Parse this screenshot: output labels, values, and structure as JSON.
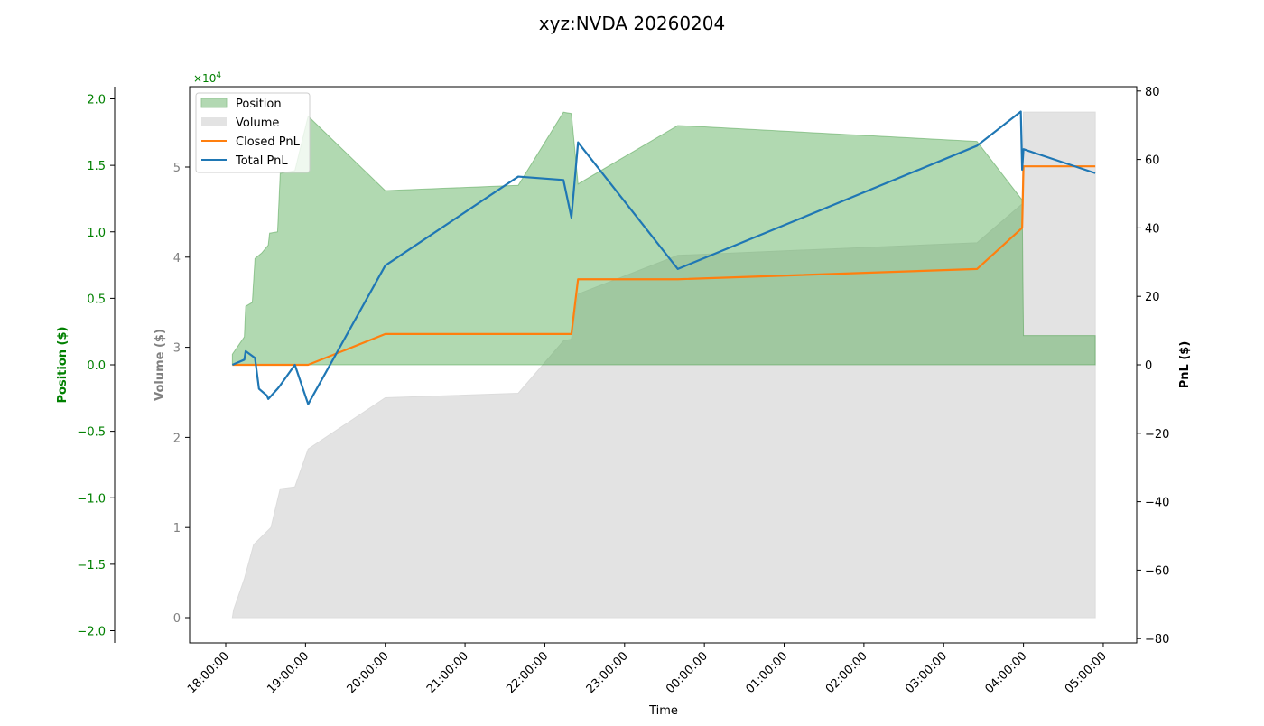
{
  "chart_data": {
    "type": "line",
    "title": "xyz:NVDA 20260204",
    "xlabel": "Time",
    "x_ticks": [
      "18:00:00",
      "19:00:00",
      "20:00:00",
      "21:00:00",
      "22:00:00",
      "23:00:00",
      "00:00:00",
      "01:00:00",
      "02:00:00",
      "03:00:00",
      "04:00:00",
      "05:00:00"
    ],
    "axes": {
      "position": {
        "label": "Position ($)",
        "color": "#008000",
        "multiplier": "×10^4",
        "ylim": [
          -2.05,
          2.05
        ],
        "ticks": [
          "2.0",
          "1.5",
          "1.0",
          "0.5",
          "0.0",
          "−0.5",
          "−1.0",
          "−1.5",
          "−2.0"
        ]
      },
      "volume": {
        "label": "Volume ($)",
        "color": "#808080",
        "multiplier": "×10^4",
        "ylim": [
          -0.28,
          5.9
        ],
        "ticks": [
          "0",
          "1",
          "2",
          "3",
          "4",
          "5"
        ]
      },
      "pnl": {
        "label": "PnL ($)",
        "color": "#000000",
        "ylim": [
          -80,
          80
        ],
        "ticks": [
          "80",
          "60",
          "40",
          "20",
          "0",
          "−20",
          "−40",
          "−60",
          "−80"
        ]
      }
    },
    "legend": {
      "position": "upper left",
      "entries": [
        {
          "label": "Position",
          "kind": "area",
          "color": "#b2d8b2"
        },
        {
          "label": "Volume",
          "kind": "area",
          "color": "#e3e3e3"
        },
        {
          "label": "Closed PnL",
          "kind": "line",
          "color": "#ff7f0e"
        },
        {
          "label": "Total PnL",
          "kind": "line",
          "color": "#1f77b4"
        }
      ]
    },
    "series": [
      {
        "name": "Position",
        "axis": "position",
        "unit": "x1e4 $",
        "x": [
          "18:05",
          "18:14",
          "18:15",
          "18:20",
          "18:22",
          "18:27",
          "18:32",
          "18:33",
          "18:39",
          "18:41",
          "18:52",
          "19:02",
          "19:60",
          "21:40",
          "22:14",
          "22:20",
          "22:25",
          "23:40",
          "03:25",
          "03:59",
          "04:00",
          "04:54"
        ],
        "values": [
          0.08,
          0.21,
          0.44,
          0.47,
          0.8,
          0.84,
          0.9,
          0.99,
          1.0,
          1.44,
          1.46,
          1.87,
          1.31,
          1.35,
          1.9,
          1.89,
          1.36,
          1.8,
          1.68,
          1.24,
          0.22,
          0.22
        ]
      },
      {
        "name": "Volume",
        "axis": "volume",
        "unit": "x1e4 $",
        "x": [
          "18:05",
          "18:06",
          "18:14",
          "18:21",
          "18:34",
          "18:41",
          "18:52",
          "19:02",
          "19:60",
          "21:40",
          "22:14",
          "22:20",
          "22:25",
          "23:40",
          "03:25",
          "03:59",
          "04:00",
          "04:54"
        ],
        "values": [
          0.0,
          0.09,
          0.43,
          0.81,
          1.0,
          1.43,
          1.45,
          1.87,
          2.44,
          2.49,
          3.07,
          3.09,
          3.59,
          4.02,
          4.16,
          4.59,
          5.61,
          5.61
        ]
      },
      {
        "name": "Closed PnL",
        "axis": "pnl",
        "x": [
          "18:05",
          "19:02",
          "19:60",
          "22:20",
          "22:25",
          "23:40",
          "03:25",
          "03:59",
          "04:00",
          "04:54"
        ],
        "values": [
          0,
          0,
          9,
          9,
          25,
          25,
          28,
          40,
          58,
          58
        ]
      },
      {
        "name": "Total PnL",
        "axis": "pnl",
        "x": [
          "18:05",
          "18:14",
          "18:15",
          "18:22",
          "18:25",
          "18:31",
          "18:32",
          "18:39",
          "18:41",
          "18:52",
          "19:02",
          "19:60",
          "21:40",
          "22:14",
          "22:20",
          "22:25",
          "23:40",
          "03:25",
          "03:58",
          "03:59",
          "04:00",
          "04:54"
        ],
        "values": [
          0,
          1.5,
          4,
          2,
          -7,
          -9,
          -10,
          -7,
          -6,
          0,
          -11.5,
          29,
          55,
          54,
          43,
          65,
          28,
          64,
          74,
          57,
          63,
          56
        ]
      }
    ],
    "grid": false
  }
}
